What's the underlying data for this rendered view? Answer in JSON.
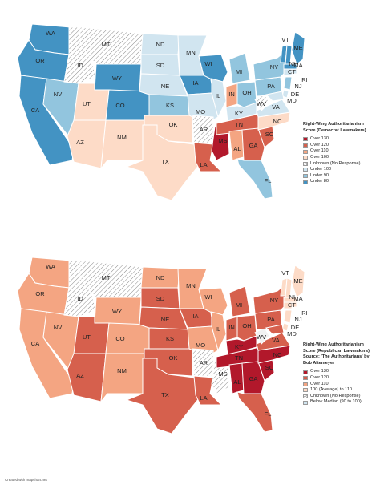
{
  "colors": {
    "dark_red": "#b2182b",
    "red": "#d6604d",
    "orange": "#f4a582",
    "peach": "#fddbc7",
    "light_blue": "#d1e5f0",
    "mid_blue": "#92c5de",
    "blue": "#4393c3",
    "white": "#f2f2f2",
    "hatch": "hatch"
  },
  "top_map": {
    "legend": {
      "title": "Right-Wing Authoritarianism Score (Democrat Lawmakers)",
      "items": [
        {
          "label": "Over 130",
          "color": "#b2182b"
        },
        {
          "label": "Over 120",
          "color": "#d6604d"
        },
        {
          "label": "Over 110",
          "color": "#f4a582"
        },
        {
          "label": "Over 100",
          "color": "#fddbc7"
        },
        {
          "label": "Unknown (No Response)",
          "color": "hatch"
        },
        {
          "label": "Under 100",
          "color": "#d1e5f0"
        },
        {
          "label": "Under 90",
          "color": "#92c5de"
        },
        {
          "label": "Under 80",
          "color": "#4393c3"
        }
      ]
    },
    "states": {
      "WA": "#4393c3",
      "OR": "#4393c3",
      "CA": "#4393c3",
      "NV": "#92c5de",
      "ID": "hatch",
      "MT": "hatch",
      "WY": "#4393c3",
      "UT": "#fddbc7",
      "AZ": "#fddbc7",
      "CO": "#4393c3",
      "NM": "#fddbc7",
      "ND": "#d1e5f0",
      "SD": "#d1e5f0",
      "NE": "#d1e5f0",
      "KS": "#92c5de",
      "OK": "#fddbc7",
      "TX": "#fddbc7",
      "MN": "#d1e5f0",
      "IA": "#4393c3",
      "MO": "#d1e5f0",
      "AR": "hatch",
      "LA": "#d6604d",
      "WI": "#4393c3",
      "IL": "#d1e5f0",
      "MS": "#b2182b",
      "MI": "#92c5de",
      "IN": "#f4a582",
      "OH": "#92c5de",
      "KY": "#d1e5f0",
      "TN": "#d6604d",
      "AL": "#f4a582",
      "GA": "#d6604d",
      "FL": "#92c5de",
      "SC": "#d6604d",
      "NC": "#fddbc7",
      "VA": "#d1e5f0",
      "WV": "hatch",
      "PA": "#92c5de",
      "NY": "#92c5de",
      "ME": "#4393c3",
      "VT": "#4393c3",
      "NH": "#4393c3",
      "MA": "#4393c3",
      "RI": "#d1e5f0",
      "CT": "#d1e5f0",
      "NJ": "#92c5de",
      "DE": "#d1e5f0",
      "MD": "#d1e5f0"
    }
  },
  "bottom_map": {
    "legend": {
      "title": "Right-Wing Authoritarianism Score (Republican Lawmakers) Source: 'The Authoritarians' by Bob Altemeyer",
      "items": [
        {
          "label": "Over 130",
          "color": "#b2182b"
        },
        {
          "label": "Over 120",
          "color": "#d6604d"
        },
        {
          "label": "Over 110",
          "color": "#f4a582"
        },
        {
          "label": "100 (Average) to 110",
          "color": "#fddbc7"
        },
        {
          "label": "Unknown (No Response)",
          "color": "hatch"
        },
        {
          "label": "Below Median (90 to 100)",
          "color": "#d1e5f0"
        }
      ]
    },
    "states": {
      "WA": "#f4a582",
      "OR": "#f4a582",
      "CA": "#f4a582",
      "NV": "#f4a582",
      "ID": "hatch",
      "MT": "hatch",
      "WY": "#f4a582",
      "UT": "#d6604d",
      "AZ": "#d6604d",
      "CO": "#f4a582",
      "NM": "#f4a582",
      "ND": "#f4a582",
      "SD": "#d6604d",
      "NE": "#d6604d",
      "KS": "#d6604d",
      "OK": "#d6604d",
      "TX": "#d6604d",
      "MN": "#f4a582",
      "IA": "#d6604d",
      "MO": "#f4a582",
      "AR": "hatch",
      "LA": "#d6604d",
      "WI": "#f4a582",
      "IL": "#f4a582",
      "MS": "hatch",
      "MI": "#d6604d",
      "IN": "#d6604d",
      "OH": "#d6604d",
      "KY": "#b2182b",
      "TN": "#b2182b",
      "AL": "#b2182b",
      "GA": "#b2182b",
      "FL": "#d6604d",
      "SC": "#b2182b",
      "NC": "#b2182b",
      "VA": "#d6604d",
      "WV": "#f2f2f2",
      "PA": "#d6604d",
      "NY": "#d6604d",
      "ME": "#fddbc7",
      "VT": "#fddbc7",
      "NH": "#fddbc7",
      "MA": "#fddbc7",
      "RI": "#fddbc7",
      "CT": "#fddbc7",
      "NJ": "#fddbc7",
      "DE": "#fddbc7",
      "MD": "#d6604d"
    }
  },
  "state_labels": [
    "WA",
    "OR",
    "CA",
    "NV",
    "ID",
    "MT",
    "WY",
    "UT",
    "AZ",
    "CO",
    "NM",
    "ND",
    "SD",
    "NE",
    "KS",
    "OK",
    "TX",
    "MN",
    "IA",
    "MO",
    "AR",
    "LA",
    "WI",
    "IL",
    "MS",
    "MI",
    "IN",
    "OH",
    "KY",
    "TN",
    "AL",
    "GA",
    "FL",
    "SC",
    "NC",
    "VA",
    "WV",
    "PA",
    "NY",
    "ME",
    "VT",
    "NH",
    "MA",
    "RI",
    "CT",
    "NJ",
    "DE",
    "MD"
  ],
  "credit": "Created with mapchart.net"
}
